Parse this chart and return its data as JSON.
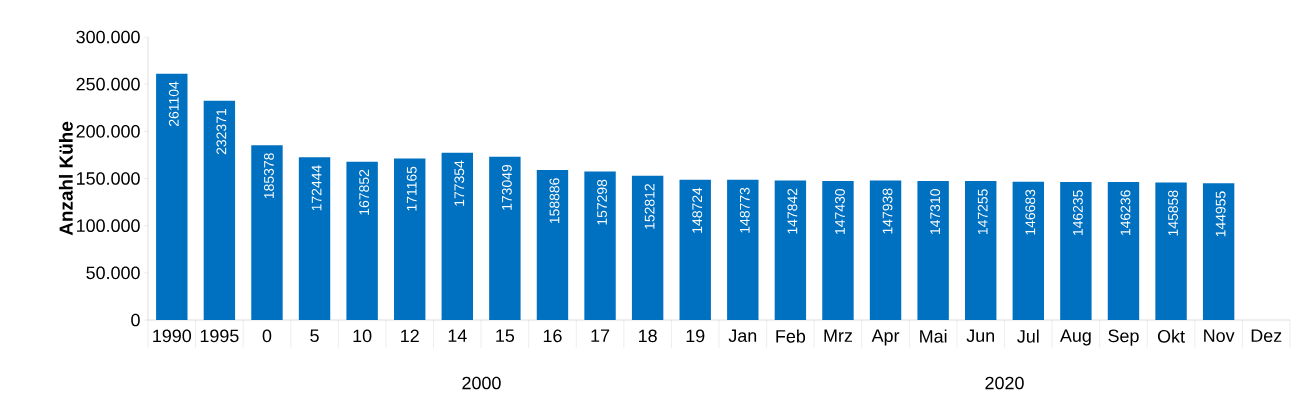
{
  "chart_data": {
    "type": "bar",
    "ylabel": "Anzahl Kühe",
    "categories": [
      "1990",
      "1995",
      "0",
      "5",
      "10",
      "12",
      "14",
      "15",
      "16",
      "17",
      "18",
      "19",
      "Jan",
      "Feb",
      "Mrz",
      "Apr",
      "Mai",
      "Jun",
      "Jul",
      "Aug",
      "Sep",
      "Okt",
      "Nov",
      "Dez"
    ],
    "values": [
      261104,
      232371,
      185378,
      172444,
      167852,
      171165,
      177354,
      173049,
      158886,
      157298,
      152812,
      148724,
      148773,
      147842,
      147430,
      147938,
      147310,
      147255,
      146683,
      146235,
      146236,
      145858,
      144955,
      null
    ],
    "color": "#0070c0",
    "data_labels": true,
    "ylim": [
      0,
      300000
    ],
    "yticks": [
      0,
      {
        "value": 50000,
        "label": "50.000"
      },
      {
        "value": 100000,
        "label": "100.000"
      },
      {
        "value": 150000,
        "label": "150.000"
      },
      {
        "value": 200000,
        "label": "200.000"
      },
      {
        "value": 250000,
        "label": "250.000"
      },
      {
        "value": 300000,
        "label": "300.000"
      }
    ],
    "annotations": [
      "2000",
      "2020"
    ],
    "grid": false
  }
}
